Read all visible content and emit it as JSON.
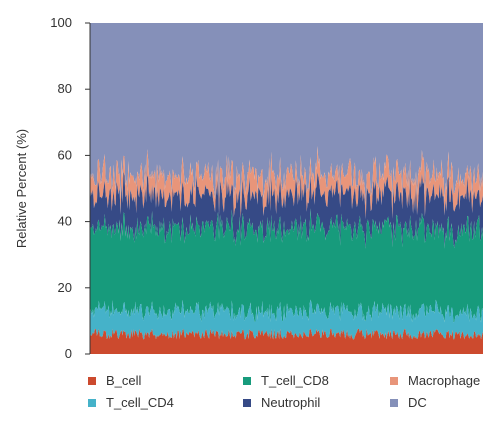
{
  "chart_data": {
    "type": "area",
    "stacked": true,
    "title": "",
    "xlabel": "",
    "ylabel": "Relative Percent (%)",
    "ylim": [
      0,
      100
    ],
    "yticks": [
      0,
      20,
      40,
      60,
      80,
      100
    ],
    "x_ticks_shown": false,
    "grid": false,
    "legend_position": "bottom",
    "series": [
      {
        "name": "B_cell",
        "color": "#cc4a2e",
        "values_mean": 6
      },
      {
        "name": "T_cell_CD4",
        "color": "#45b2c9",
        "values_mean": 7
      },
      {
        "name": "T_cell_CD8",
        "color": "#179b7c",
        "values_mean": 25
      },
      {
        "name": "Neutrophil",
        "color": "#364a86",
        "values_mean": 10
      },
      {
        "name": "Macrophage",
        "color": "#e8957a",
        "values_mean": 6
      },
      {
        "name": "DC",
        "color": "#8590b9",
        "values_mean": 46
      }
    ],
    "n_samples_estimated": 400
  },
  "legend": {
    "rows": [
      [
        "B_cell",
        "T_cell_CD8",
        "Macrophage"
      ],
      [
        "T_cell_CD4",
        "Neutrophil",
        "DC"
      ]
    ]
  }
}
